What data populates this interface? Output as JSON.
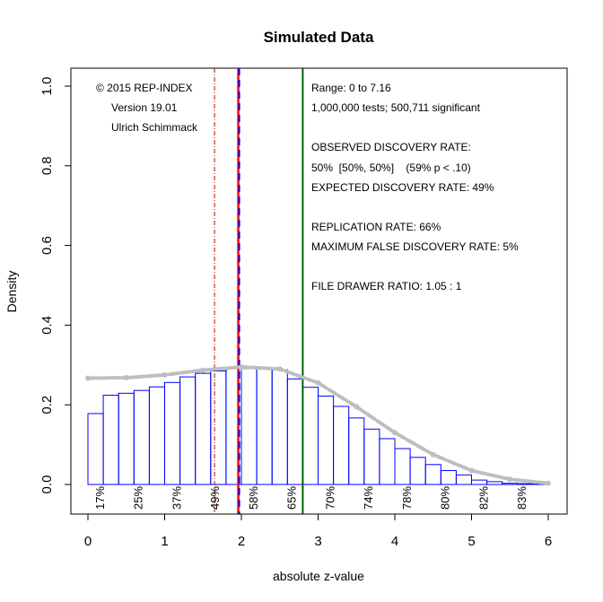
{
  "chart_data": {
    "type": "bar",
    "title": "Simulated Data",
    "xlabel": "absolute z-value",
    "ylabel": "Density",
    "xlim": [
      0,
      6
    ],
    "ylim": [
      0,
      1.0
    ],
    "x_ticks": [
      "0",
      "1",
      "2",
      "3",
      "4",
      "5",
      "6"
    ],
    "y_ticks": [
      "0.0",
      "0.2",
      "0.4",
      "0.6",
      "0.8",
      "1.0"
    ],
    "bin_width": 0.2,
    "bin_starts": [
      0,
      0.2,
      0.4,
      0.6,
      0.8,
      1.0,
      1.2,
      1.4,
      1.6,
      1.8,
      2.0,
      2.2,
      2.4,
      2.6,
      2.8,
      3.0,
      3.2,
      3.4,
      3.6,
      3.8,
      4.0,
      4.2,
      4.4,
      4.6,
      4.8,
      5.0,
      5.2,
      5.4,
      5.6,
      5.8
    ],
    "bin_values": [
      0.178,
      0.224,
      0.229,
      0.236,
      0.245,
      0.256,
      0.27,
      0.279,
      0.285,
      0.293,
      0.291,
      0.29,
      0.288,
      0.265,
      0.244,
      0.222,
      0.196,
      0.167,
      0.139,
      0.115,
      0.09,
      0.068,
      0.05,
      0.035,
      0.024,
      0.011,
      0.007,
      0.003,
      0.002,
      0.001
    ],
    "fitted_curve": {
      "x": [
        0,
        0.5,
        1.0,
        1.5,
        2.0,
        2.5,
        3.0,
        3.5,
        4.0,
        4.5,
        5.0,
        5.5,
        6.0
      ],
      "y": [
        0.267,
        0.268,
        0.275,
        0.287,
        0.295,
        0.29,
        0.255,
        0.195,
        0.13,
        0.075,
        0.035,
        0.013,
        0.003
      ]
    },
    "vertical_lines": [
      {
        "name": "significance-threshold",
        "x": 1.96,
        "color": "#ff0000"
      },
      {
        "name": "significance-threshold-dashed",
        "x": 1.96,
        "color": "#0000ff"
      },
      {
        "name": "selection-cutoff",
        "x": 2.8,
        "color": "#006400"
      },
      {
        "name": "marginal-threshold",
        "x": 1.65,
        "color": "#cc0000"
      }
    ],
    "power_labels": [
      {
        "x": 0.15,
        "label": "17%"
      },
      {
        "x": 0.65,
        "label": "25%"
      },
      {
        "x": 1.15,
        "label": "37%"
      },
      {
        "x": 1.65,
        "label": "49%"
      },
      {
        "x": 2.15,
        "label": "58%"
      },
      {
        "x": 2.65,
        "label": "65%"
      },
      {
        "x": 3.15,
        "label": "70%"
      },
      {
        "x": 3.65,
        "label": "74%"
      },
      {
        "x": 4.15,
        "label": "78%"
      },
      {
        "x": 4.65,
        "label": "80%"
      },
      {
        "x": 5.15,
        "label": "82%"
      },
      {
        "x": 5.65,
        "label": "83%"
      }
    ],
    "annotations_left": [
      "© 2015 REP-INDEX",
      "Version 19.01",
      "Ulrich Schimmack"
    ],
    "annotations_right": [
      "Range: 0 to 7.16",
      "1,000,000 tests; 500,711 significant",
      "OBSERVED DISCOVERY RATE:",
      "50%  [50%, 50%]    (59% p < .10)",
      "EXPECTED DISCOVERY RATE: 49%",
      "REPLICATION RATE: 66%",
      "MAXIMUM FALSE DISCOVERY RATE: 5%",
      "FILE DRAWER RATIO: 1.05 : 1"
    ],
    "colors": {
      "bars": "#0000ff",
      "curve": "#bebebe"
    }
  }
}
